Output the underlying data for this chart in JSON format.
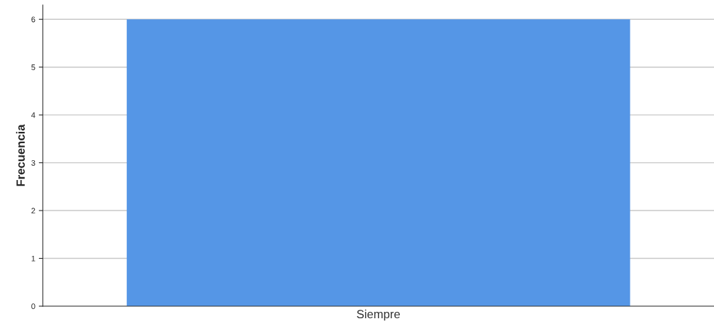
{
  "chart_data": {
    "type": "bar",
    "ylabel": "Frecuencia",
    "categories": [
      "Siempre"
    ],
    "values": [
      6
    ],
    "color": "#5596e6",
    "ylim": [
      0,
      6.3
    ],
    "yticks": [
      0,
      1,
      2,
      3,
      4,
      5,
      6
    ],
    "grid": "y"
  }
}
